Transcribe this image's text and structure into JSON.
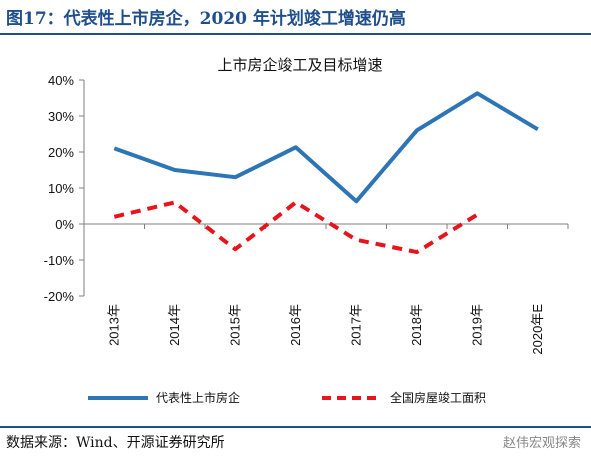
{
  "figure_title": "图17：代表性上市房企，2020 年计划竣工增速仍高",
  "source_note": "数据来源：Wind、开源证券研究所",
  "watermark": "赵伟宏观探索",
  "chart_data": {
    "type": "line",
    "title": "上市房企竣工及目标增速",
    "categories": [
      "2013年",
      "2014年",
      "2015年",
      "2016年",
      "2017年",
      "2018年",
      "2019年",
      "2020年E"
    ],
    "series": [
      {
        "name": "代表性上市房企",
        "values": [
          21,
          15,
          13,
          21.3,
          6.3,
          26,
          36.3,
          26.3
        ],
        "color": "#2e75b6",
        "style": "solid"
      },
      {
        "name": "全国房屋竣工面积",
        "values": [
          2,
          6,
          -7,
          6,
          -4.4,
          -7.8,
          2.6,
          null
        ],
        "color": "#e8141b",
        "style": "dashed"
      }
    ],
    "yticks": [
      "40%",
      "30%",
      "20%",
      "10%",
      "0%",
      "-10%",
      "-20%"
    ],
    "ylim": [
      -20,
      40
    ],
    "legend_position": "bottom"
  }
}
